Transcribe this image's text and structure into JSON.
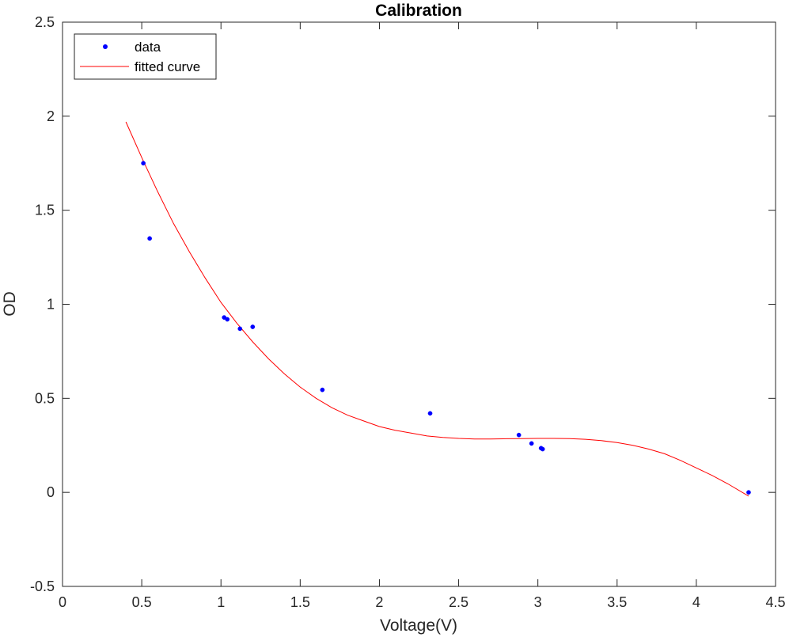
{
  "chart_data": {
    "type": "line",
    "title": "Calibration",
    "xlabel": "Voltage(V)",
    "ylabel": "OD",
    "xlim": [
      0,
      4.5
    ],
    "ylim": [
      -0.5,
      2.5
    ],
    "xticks": [
      0,
      0.5,
      1,
      1.5,
      2,
      2.5,
      3,
      3.5,
      4,
      4.5
    ],
    "xtick_labels": [
      "0",
      "0.5",
      "1",
      "1.5",
      "2",
      "2.5",
      "3",
      "3.5",
      "4",
      "4.5"
    ],
    "yticks": [
      -0.5,
      0,
      0.5,
      1,
      1.5,
      2,
      2.5
    ],
    "ytick_labels": [
      "-0.5",
      "0",
      "0.5",
      "1",
      "1.5",
      "2",
      "2.5"
    ],
    "grid": false,
    "legend_position": "top-left",
    "series": [
      {
        "name": "data",
        "kind": "scatter",
        "color": "#0000ff",
        "x": [
          0.51,
          0.55,
          1.02,
          1.04,
          1.12,
          1.2,
          1.64,
          2.32,
          2.88,
          2.96,
          3.02,
          3.03,
          4.33
        ],
        "y": [
          1.75,
          1.35,
          0.93,
          0.92,
          0.87,
          0.88,
          0.545,
          0.42,
          0.305,
          0.26,
          0.235,
          0.23,
          0.0
        ]
      },
      {
        "name": "fitted curve",
        "kind": "line",
        "color": "#ff0000",
        "x": [
          0.4,
          0.5,
          0.6,
          0.7,
          0.8,
          0.9,
          1.0,
          1.1,
          1.2,
          1.3,
          1.4,
          1.5,
          1.6,
          1.7,
          1.8,
          1.9,
          2.0,
          2.1,
          2.2,
          2.3,
          2.4,
          2.5,
          2.6,
          2.7,
          2.8,
          2.9,
          3.0,
          3.1,
          3.2,
          3.3,
          3.4,
          3.5,
          3.6,
          3.7,
          3.8,
          3.9,
          4.0,
          4.1,
          4.2,
          4.33
        ],
        "y": [
          1.97,
          1.78,
          1.6,
          1.43,
          1.28,
          1.14,
          1.01,
          0.9,
          0.8,
          0.71,
          0.63,
          0.56,
          0.5,
          0.45,
          0.41,
          0.38,
          0.35,
          0.33,
          0.315,
          0.3,
          0.292,
          0.287,
          0.284,
          0.284,
          0.285,
          0.286,
          0.287,
          0.287,
          0.286,
          0.282,
          0.275,
          0.265,
          0.25,
          0.23,
          0.205,
          0.17,
          0.13,
          0.09,
          0.045,
          -0.02
        ]
      }
    ]
  }
}
